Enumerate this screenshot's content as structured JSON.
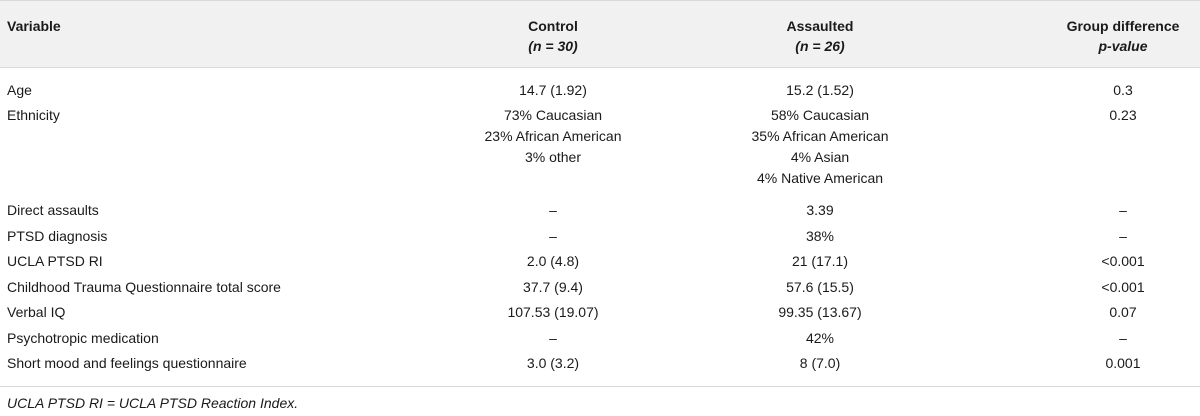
{
  "table": {
    "header": {
      "variable": "Variable",
      "control": "Control",
      "control_n": "(n = 30)",
      "assaulted": "Assaulted",
      "assaulted_n": "(n = 26)",
      "group_diff": "Group difference",
      "pvalue": "p-value"
    },
    "rows": [
      {
        "variable": "Age",
        "control": "14.7 (1.92)",
        "assaulted": "15.2 (1.52)",
        "pvalue": "0.3"
      },
      {
        "variable": "Ethnicity",
        "control": "73% Caucasian\n23% African American\n3% other",
        "assaulted": "58% Caucasian\n35% African American\n4% Asian\n4% Native American",
        "pvalue": "0.23"
      },
      {
        "variable": "Direct assaults",
        "control": "–",
        "assaulted": "3.39",
        "pvalue": "–"
      },
      {
        "variable": "PTSD diagnosis",
        "control": "–",
        "assaulted": "38%",
        "pvalue": "–"
      },
      {
        "variable": "UCLA PTSD RI",
        "control": "2.0 (4.8)",
        "assaulted": "21 (17.1)",
        "pvalue": "<0.001"
      },
      {
        "variable": "Childhood Trauma Questionnaire total score",
        "control": "37.7 (9.4)",
        "assaulted": "57.6 (15.5)",
        "pvalue": "<0.001"
      },
      {
        "variable": "Verbal IQ",
        "control": "107.53 (19.07)",
        "assaulted": "99.35 (13.67)",
        "pvalue": "0.07"
      },
      {
        "variable": "Psychotropic medication",
        "control": "–",
        "assaulted": "42%",
        "pvalue": "–"
      },
      {
        "variable": "Short mood and feelings questionnaire",
        "control": "3.0 (3.2)",
        "assaulted": "8 (7.0)",
        "pvalue": "0.001"
      }
    ],
    "footnote": "UCLA PTSD RI = UCLA PTSD Reaction Index."
  }
}
